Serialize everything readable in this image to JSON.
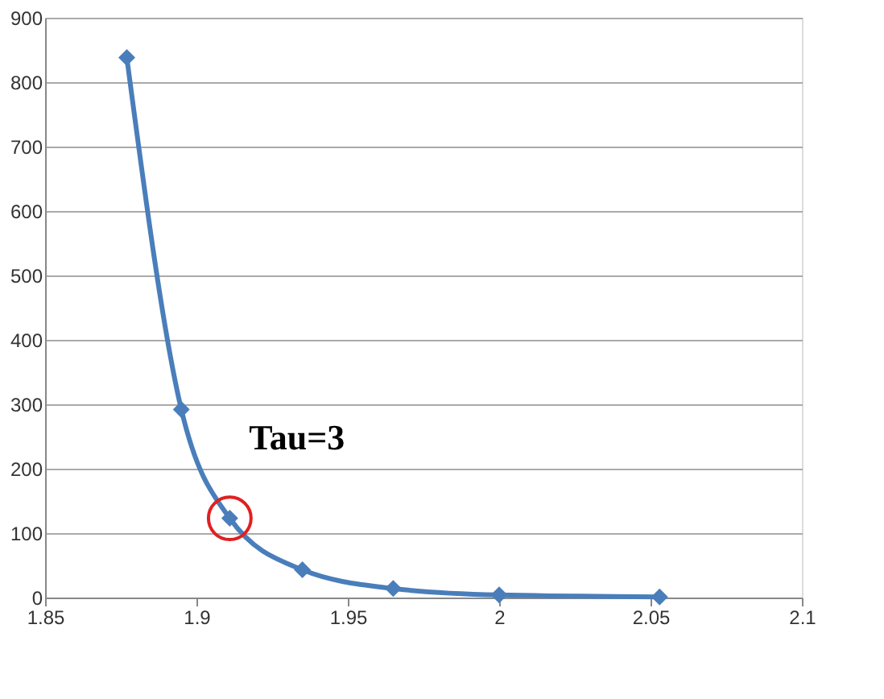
{
  "chart_data": {
    "type": "line",
    "x": [
      1.877,
      1.895,
      1.911,
      1.935,
      1.965,
      2.0,
      2.053
    ],
    "series": [
      {
        "color": "#4a7ebb",
        "values": [
          838,
          292,
          123,
          43,
          14,
          4,
          1
        ]
      }
    ],
    "xlim": [
      1.85,
      2.1
    ],
    "xticks": [
      1.85,
      1.9,
      1.95,
      2,
      2.05,
      2.1
    ],
    "ylim": [
      0,
      900
    ],
    "yticks": [
      0,
      100,
      200,
      300,
      400,
      500,
      600,
      700,
      800,
      900
    ],
    "grid": "y",
    "marker": "diamond",
    "line_style": "solid",
    "annotations": [
      {
        "text": "Tau=3",
        "x": 1.911,
        "y": 123
      }
    ]
  }
}
